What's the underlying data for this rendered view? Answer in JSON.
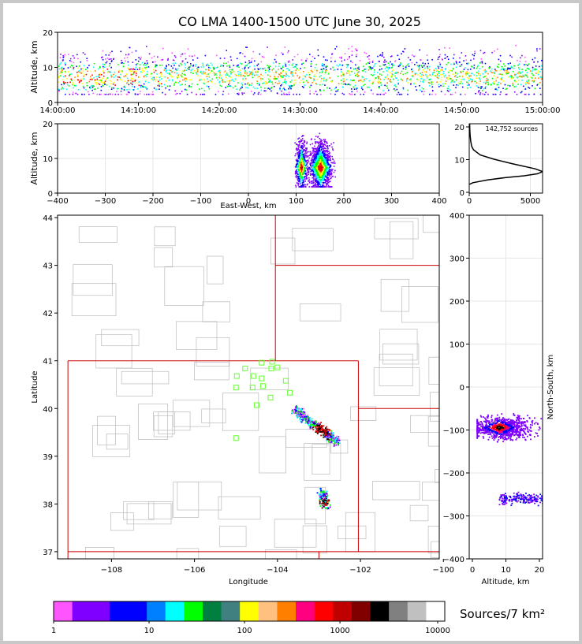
{
  "title": "CO LMA 1400-1500 UTC June 30, 2025",
  "colors": {
    "frame": "#c8c8c8",
    "border": "#cc0000",
    "county": "#bbbbbb",
    "station": "#66ff33"
  },
  "chart_data": [
    {
      "id": "time-altitude",
      "type": "heatmap",
      "ylabel": "Altitude, km",
      "xlabel": "",
      "ylim": [
        0,
        20
      ],
      "yticks": [
        "0",
        "10",
        "20"
      ],
      "xticks": [
        "14:00:00",
        "14:10:00",
        "14:20:00",
        "14:30:00",
        "14:40:00",
        "14:50:00",
        "15:00:00"
      ]
    },
    {
      "id": "eastwest-altitude",
      "type": "heatmap",
      "xlabel": "East-West, km",
      "ylabel": "Altitude, km",
      "xlim": [
        -400,
        400
      ],
      "ylim": [
        0,
        20
      ],
      "xticks": [
        "−400",
        "−300",
        "−200",
        "−100",
        "0",
        "100",
        "200",
        "300",
        "400"
      ],
      "yticks": [
        "0",
        "10",
        "20"
      ]
    },
    {
      "id": "altitude-histogram",
      "type": "line",
      "annotation": "142,752 sources",
      "xlim": [
        0,
        6000
      ],
      "ylim": [
        0,
        20
      ],
      "xticks": [
        "0",
        "5000"
      ],
      "yticks": [
        "0",
        "10",
        "20"
      ],
      "x": [
        0,
        300,
        1500,
        3000,
        4500,
        5600,
        6000,
        5400,
        3500,
        2000,
        900,
        350,
        200,
        120,
        80,
        50,
        30
      ],
      "y": [
        2.5,
        3,
        3.8,
        4.5,
        5,
        5.6,
        6.2,
        7,
        8.5,
        9.8,
        11,
        12.5,
        13.5,
        15,
        16.5,
        18,
        20
      ]
    },
    {
      "id": "plan-view",
      "type": "heatmap",
      "xlabel": "Longitude",
      "ylabel": "Latitude",
      "xlim": [
        -109.3,
        -100.1
      ],
      "ylim": [
        36.85,
        44.05
      ],
      "xticks": [
        "−108",
        "−106",
        "−104",
        "−102",
        "−100"
      ],
      "yticks": [
        "37",
        "38",
        "39",
        "40",
        "41",
        "42",
        "43",
        "44"
      ]
    },
    {
      "id": "northsouth-altitude",
      "type": "heatmap",
      "xlabel": "Altitude, km",
      "ylabel": "North-South, km",
      "xlim": [
        0,
        20
      ],
      "ylim": [
        -400,
        400
      ],
      "xticks": [
        "0",
        "10",
        "20"
      ],
      "yticks": [
        "−400",
        "−300",
        "−200",
        "−100",
        "0",
        "100",
        "200",
        "300",
        "400"
      ]
    },
    {
      "id": "colorbar",
      "type": "bar",
      "label": "Sources/7 km²",
      "ticks": [
        "1",
        "10",
        "100",
        "1000",
        "10000"
      ],
      "colors": [
        "#ff55ff",
        "#8000ff",
        "#8000ff",
        "#0000ff",
        "#0000ff",
        "#0080ff",
        "#00ffff",
        "#00ff00",
        "#008040",
        "#408080",
        "#ffff00",
        "#ffc080",
        "#ff8000",
        "#ff0080",
        "#ff0000",
        "#c00000",
        "#800000",
        "#000000",
        "#808080",
        "#c0c0c0",
        "#ffffff"
      ]
    }
  ]
}
